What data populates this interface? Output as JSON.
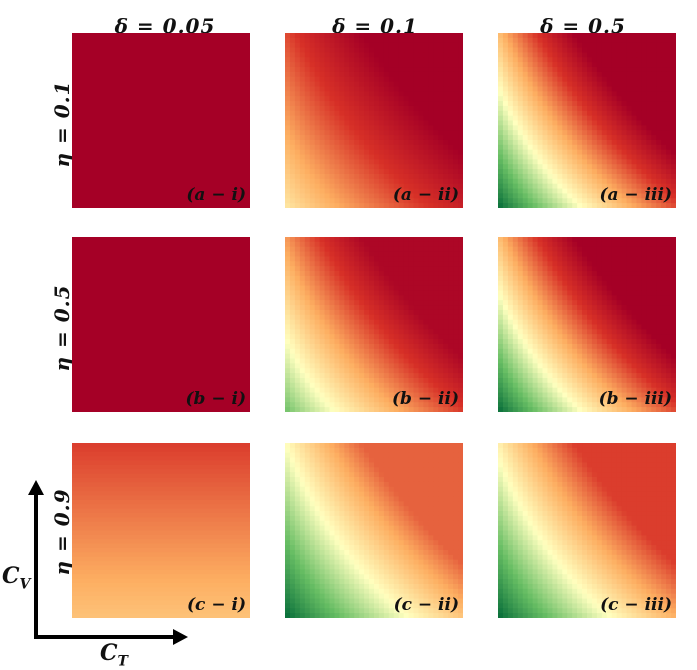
{
  "chart_data": {
    "type": "heatmap",
    "column_headers": [
      "δ = 0.05",
      "δ = 0.1",
      "δ = 0.5"
    ],
    "row_headers": [
      "η = 0.1",
      "η = 0.5",
      "η = 0.9"
    ],
    "xlabel": "C_T",
    "ylabel": "C_V",
    "xlabel_main": "C",
    "xlabel_sub": "T",
    "ylabel_main": "C",
    "ylabel_sub": "V",
    "colormap": [
      "#006837",
      "#66bd63",
      "#ffffbf",
      "#fdae61",
      "#d73027",
      "#a50026"
    ],
    "panels": [
      {
        "label": "(a − i)",
        "row": 0,
        "col": 0,
        "fill": "uniform",
        "level": 1.0
      },
      {
        "label": "(a − ii)",
        "row": 0,
        "col": 1,
        "fill": "gradient",
        "min_level": 0.45,
        "max_level": 1.0
      },
      {
        "label": "(a − iii)",
        "row": 0,
        "col": 2,
        "fill": "gradient",
        "min_level": 0.0,
        "max_level": 1.0
      },
      {
        "label": "(b − i)",
        "row": 1,
        "col": 0,
        "fill": "uniform",
        "level": 1.0
      },
      {
        "label": "(b − ii)",
        "row": 1,
        "col": 1,
        "fill": "gradient",
        "min_level": 0.2,
        "max_level": 0.97
      },
      {
        "label": "(b − iii)",
        "row": 1,
        "col": 2,
        "fill": "gradient",
        "min_level": 0.0,
        "max_level": 1.0
      },
      {
        "label": "(c − i)",
        "row": 2,
        "col": 0,
        "fill": "vertical",
        "min_level": 0.55,
        "max_level": 0.78
      },
      {
        "label": "(c − ii)",
        "row": 2,
        "col": 1,
        "fill": "gradient",
        "min_level": 0.0,
        "max_level": 0.72
      },
      {
        "label": "(c − iii)",
        "row": 2,
        "col": 2,
        "fill": "gradient",
        "min_level": 0.0,
        "max_level": 0.78
      }
    ]
  }
}
